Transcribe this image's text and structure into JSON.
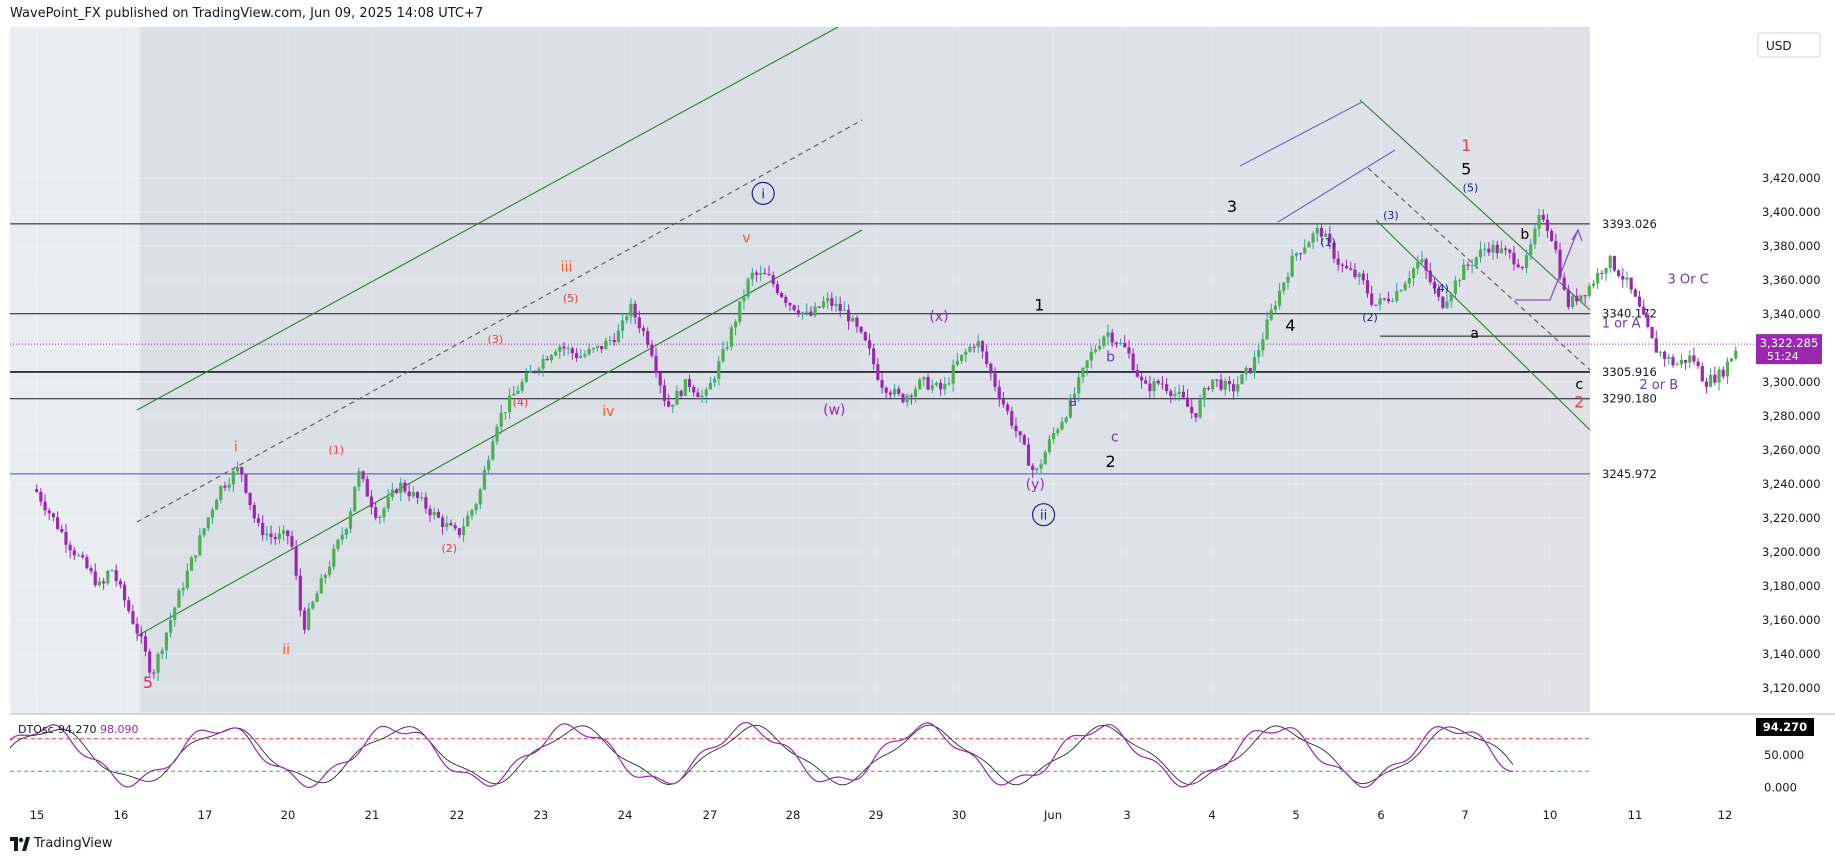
{
  "header": {
    "publisher_line": "WavePoint_FX published on TradingView.com, Jun 09, 2025 14:08 UTC+7"
  },
  "footer": {
    "brand": "TradingView",
    "logo_icon": "tradingview-logo-icon"
  },
  "chart_data": [
    {
      "type": "line",
      "subtype": "candlestick",
      "currency_label": "USD",
      "y_range": [
        3100,
        3430
      ],
      "y_ticks": [
        "3,120.000",
        "3,140.000",
        "3,160.000",
        "3,180.000",
        "3,200.000",
        "3,220.000",
        "3,240.000",
        "3,260.000",
        "3,280.000",
        "3,300.000",
        "3,320.000",
        "3,340.000",
        "3,360.000",
        "3,380.000",
        "3,400.000",
        "3,420.000"
      ],
      "x_tick_labels": [
        "15",
        "16",
        "17",
        "20",
        "21",
        "22",
        "23",
        "24",
        "27",
        "28",
        "29",
        "30",
        "Jun",
        "3",
        "4",
        "5",
        "6",
        "7",
        "10",
        "11",
        "12"
      ],
      "price_path": [
        [
          0,
          3237
        ],
        [
          0.4,
          3205
        ],
        [
          0.8,
          3178
        ],
        [
          0.9,
          3192
        ],
        [
          1.25,
          3150
        ],
        [
          1.4,
          3128
        ],
        [
          1.7,
          3172
        ],
        [
          1.95,
          3205
        ],
        [
          2.2,
          3237
        ],
        [
          2.45,
          3250
        ],
        [
          2.65,
          3215
        ],
        [
          2.85,
          3208
        ],
        [
          3.05,
          3210
        ],
        [
          3.2,
          3155
        ],
        [
          3.45,
          3185
        ],
        [
          3.75,
          3220
        ],
        [
          3.85,
          3248
        ],
        [
          4.1,
          3220
        ],
        [
          4.35,
          3240
        ],
        [
          4.6,
          3230
        ],
        [
          4.85,
          3218
        ],
        [
          5.05,
          3210
        ],
        [
          5.3,
          3232
        ],
        [
          5.5,
          3275
        ],
        [
          5.75,
          3295
        ],
        [
          6.0,
          3310
        ],
        [
          6.25,
          3322
        ],
        [
          6.5,
          3315
        ],
        [
          6.75,
          3320
        ],
        [
          7.0,
          3330
        ],
        [
          7.1,
          3345
        ],
        [
          7.35,
          3322
        ],
        [
          7.55,
          3285
        ],
        [
          7.8,
          3300
        ],
        [
          8.0,
          3290
        ],
        [
          8.25,
          3320
        ],
        [
          8.55,
          3363
        ],
        [
          8.75,
          3362
        ],
        [
          9.0,
          3347
        ],
        [
          9.25,
          3338
        ],
        [
          9.45,
          3348
        ],
        [
          9.7,
          3340
        ],
        [
          9.95,
          3320
        ],
        [
          10.1,
          3300
        ],
        [
          10.35,
          3290
        ],
        [
          10.6,
          3300
        ],
        [
          10.85,
          3295
        ],
        [
          11.0,
          3310
        ],
        [
          11.25,
          3325
        ],
        [
          11.5,
          3295
        ],
        [
          11.75,
          3268
        ],
        [
          11.95,
          3245
        ],
        [
          12.15,
          3268
        ],
        [
          12.35,
          3285
        ],
        [
          12.6,
          3315
        ],
        [
          12.8,
          3330
        ],
        [
          13.05,
          3318
        ],
        [
          13.25,
          3296
        ],
        [
          13.45,
          3300
        ],
        [
          13.7,
          3290
        ],
        [
          13.85,
          3280
        ],
        [
          14.05,
          3302
        ],
        [
          14.3,
          3295
        ],
        [
          14.55,
          3310
        ],
        [
          14.8,
          3345
        ],
        [
          15.05,
          3375
        ],
        [
          15.35,
          3390
        ],
        [
          15.6,
          3368
        ],
        [
          15.85,
          3360
        ],
        [
          16.0,
          3345
        ],
        [
          16.25,
          3352
        ],
        [
          16.55,
          3372
        ],
        [
          16.8,
          3345
        ],
        [
          17.05,
          3365
        ],
        [
          17.35,
          3380
        ],
        [
          17.6,
          3375
        ],
        [
          17.8,
          3368
        ],
        [
          18.0,
          3400
        ],
        [
          18.15,
          3382
        ],
        [
          18.3,
          3345
        ],
        [
          18.55,
          3355
        ],
        [
          18.8,
          3372
        ],
        [
          19.0,
          3360
        ],
        [
          19.15,
          3345
        ],
        [
          19.35,
          3320
        ],
        [
          19.6,
          3310
        ],
        [
          19.8,
          3315
        ],
        [
          19.95,
          3300
        ],
        [
          20.15,
          3305
        ],
        [
          20.35,
          3322
        ]
      ],
      "horizontal_levels": [
        {
          "value": 3393.026,
          "label": "3393.026"
        },
        {
          "value": 3340.172,
          "label": "3340.172"
        },
        {
          "value": 3305.916,
          "label": "3305.916"
        },
        {
          "value": 3290.18,
          "label": "3290.180"
        },
        {
          "value": 3245.972,
          "label": "3245.972"
        }
      ],
      "current_price": {
        "value": 3322.285,
        "label": "3,322.285",
        "countdown": "51:24",
        "color": "#9c27b0"
      },
      "wave_labels": [
        {
          "text": "5",
          "x": 1.35,
          "y": 3120,
          "color": "#e91e63",
          "size": 16
        },
        {
          "text": "i",
          "x": 2.4,
          "y": 3259,
          "color": "#ff5722",
          "size": 14
        },
        {
          "text": "ii",
          "x": 3.0,
          "y": 3140,
          "color": "#ff5722",
          "size": 14
        },
        {
          "text": "iii",
          "x": 6.35,
          "y": 3365,
          "color": "#ff5722",
          "size": 14
        },
        {
          "text": "iv",
          "x": 6.85,
          "y": 3280,
          "color": "#ff5722",
          "size": 14
        },
        {
          "text": "v",
          "x": 8.5,
          "y": 3382,
          "color": "#ff5722",
          "size": 14
        },
        {
          "text": "(1)",
          "x": 3.6,
          "y": 3258,
          "color": "#f23645",
          "size": 11
        },
        {
          "text": "(2)",
          "x": 4.95,
          "y": 3200,
          "color": "#f23645",
          "size": 11
        },
        {
          "text": "(3)",
          "x": 5.5,
          "y": 3323,
          "color": "#f23645",
          "size": 11
        },
        {
          "text": "(4)",
          "x": 5.8,
          "y": 3286,
          "color": "#f23645",
          "size": 11
        },
        {
          "text": "(5)",
          "x": 6.4,
          "y": 3347,
          "color": "#f23645",
          "size": 11
        },
        {
          "text": "(w)",
          "x": 9.55,
          "y": 3281,
          "color": "#9c27b0",
          "size": 14
        },
        {
          "text": "(x)",
          "x": 10.8,
          "y": 3336,
          "color": "#9c27b0",
          "size": 14
        },
        {
          "text": "(y)",
          "x": 11.95,
          "y": 3237,
          "color": "#9c27b0",
          "size": 14
        },
        {
          "text": "1",
          "x": 12.0,
          "y": 3342,
          "color": "#000000",
          "size": 16
        },
        {
          "text": "a",
          "x": 12.4,
          "y": 3286,
          "color": "#673ab7",
          "size": 14
        },
        {
          "text": "b",
          "x": 12.85,
          "y": 3312,
          "color": "#673ab7",
          "size": 14
        },
        {
          "text": "c",
          "x": 12.9,
          "y": 3265,
          "color": "#673ab7",
          "size": 14
        },
        {
          "text": "2",
          "x": 12.85,
          "y": 3250,
          "color": "#000000",
          "size": 16
        },
        {
          "text": "3",
          "x": 14.3,
          "y": 3400,
          "color": "#000000",
          "size": 16
        },
        {
          "text": "4",
          "x": 15.0,
          "y": 3330,
          "color": "#000000",
          "size": 16
        },
        {
          "text": "(1)",
          "x": 15.45,
          "y": 3380,
          "color": "#1a237e",
          "size": 11
        },
        {
          "text": "(2)",
          "x": 15.95,
          "y": 3336,
          "color": "#1a237e",
          "size": 11
        },
        {
          "text": "(3)",
          "x": 16.2,
          "y": 3396,
          "color": "#1a237e",
          "size": 11
        },
        {
          "text": "(4)",
          "x": 16.8,
          "y": 3353,
          "color": "#1a237e",
          "size": 11
        },
        {
          "text": "(5)",
          "x": 17.15,
          "y": 3412,
          "color": "#1a237e",
          "size": 11
        },
        {
          "text": "5",
          "x": 17.1,
          "y": 3422,
          "color": "#000000",
          "size": 16
        },
        {
          "text": "1",
          "x": 17.1,
          "y": 3436,
          "color": "#f23645",
          "size": 16
        },
        {
          "text": "b",
          "x": 17.8,
          "y": 3384,
          "color": "#000000",
          "size": 14
        },
        {
          "text": "a",
          "x": 17.2,
          "y": 3326,
          "color": "#000000",
          "size": 14
        },
        {
          "text": "c",
          "x": 18.45,
          "y": 3296,
          "color": "#000000",
          "size": 14
        },
        {
          "text": "2",
          "x": 18.45,
          "y": 3285,
          "color": "#f23645",
          "size": 16
        },
        {
          "text": "1 or A",
          "x": 18.95,
          "y": 3332,
          "color": "#673ab7",
          "size": 13
        },
        {
          "text": "2 or B",
          "x": 19.4,
          "y": 3296,
          "color": "#673ab7",
          "size": 13
        },
        {
          "text": "3 Or C",
          "x": 19.75,
          "y": 3358,
          "color": "#673ab7",
          "size": 13
        }
      ],
      "circled_labels": [
        {
          "text": "i",
          "x": 8.7,
          "y": 3408
        },
        {
          "text": "ii",
          "x": 12.05,
          "y": 3219
        }
      ]
    },
    {
      "type": "line",
      "name": "DTOsc",
      "label": "DTOsc",
      "value_1": "94.270",
      "value_2": "98.090",
      "current_label": "94.270",
      "y_ticks": [
        "50.000",
        "0.000"
      ],
      "y_range": [
        -10,
        110
      ],
      "overbought": 75,
      "oversold": 25
    }
  ]
}
